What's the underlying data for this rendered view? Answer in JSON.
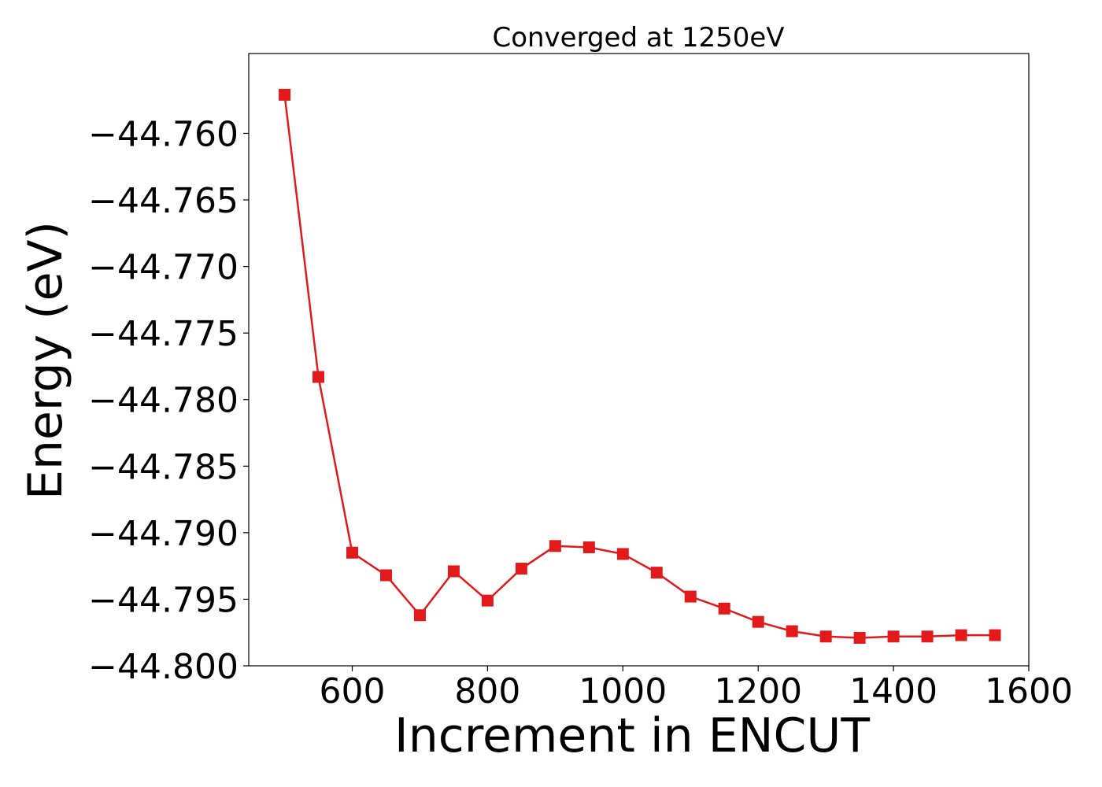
{
  "chart_data": {
    "type": "line",
    "title": "Converged at 1250eV",
    "xlabel": "Increment in ENCUT",
    "ylabel": "Energy (eV)",
    "xlim": [
      447,
      1600
    ],
    "ylim": [
      -44.8,
      -44.754
    ],
    "xticks": [
      600,
      800,
      1000,
      1200,
      1400,
      1600
    ],
    "xtick_labels": [
      "600",
      "800",
      "1000",
      "1200",
      "1400",
      "1600"
    ],
    "yticks": [
      -44.8,
      -44.795,
      -44.79,
      -44.785,
      -44.78,
      -44.775,
      -44.77,
      -44.765,
      -44.76
    ],
    "ytick_labels": [
      "−44.800",
      "−44.795",
      "−44.790",
      "−44.785",
      "−44.780",
      "−44.775",
      "−44.770",
      "−44.765",
      "−44.760"
    ],
    "grid": false,
    "series": [
      {
        "color": "#e31a1c",
        "marker": "square",
        "x": [
          500,
          550,
          600,
          650,
          700,
          750,
          800,
          850,
          900,
          950,
          1000,
          1050,
          1100,
          1150,
          1200,
          1250,
          1300,
          1350,
          1400,
          1450,
          1500,
          1550
        ],
        "y": [
          -44.7571,
          -44.7783,
          -44.7915,
          -44.7932,
          -44.7962,
          -44.7929,
          -44.7951,
          -44.7927,
          -44.791,
          -44.7911,
          -44.7916,
          -44.793,
          -44.7948,
          -44.7957,
          -44.7967,
          -44.7974,
          -44.7978,
          -44.7979,
          -44.7978,
          -44.7978,
          -44.7977,
          -44.7977
        ]
      }
    ]
  }
}
